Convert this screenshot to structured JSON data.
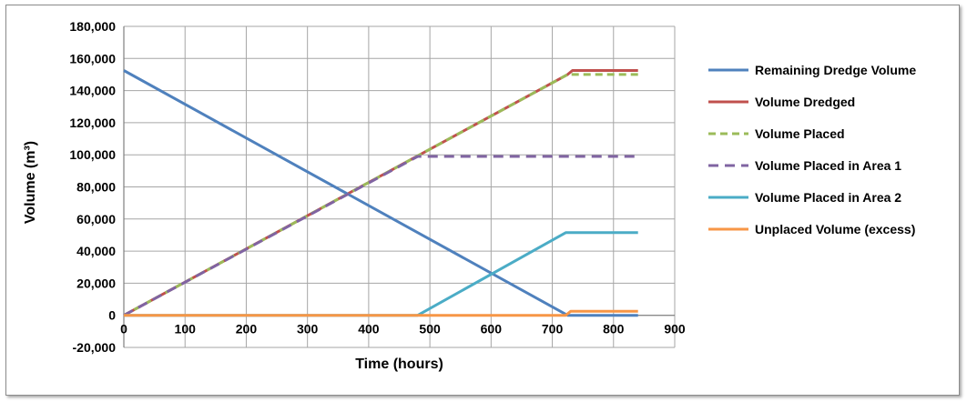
{
  "chart_data": {
    "type": "line",
    "title": "",
    "xlabel": "Time (hours)",
    "ylabel": "Volume (m³)",
    "xlim": [
      0,
      900
    ],
    "ylim": [
      -20000,
      180000
    ],
    "x_ticks": [
      0,
      100,
      200,
      300,
      400,
      500,
      600,
      700,
      800,
      900
    ],
    "x_tick_labels": [
      "0",
      "100",
      "200",
      "300",
      "400",
      "500",
      "600",
      "700",
      "800",
      "900"
    ],
    "y_ticks": [
      -20000,
      0,
      20000,
      40000,
      60000,
      80000,
      100000,
      120000,
      140000,
      160000,
      180000
    ],
    "y_tick_labels": [
      "-20,000",
      "0",
      "20,000",
      "40,000",
      "60,000",
      "80,000",
      "100,000",
      "120,000",
      "140,000",
      "160,000",
      "180,000"
    ],
    "grid": true,
    "legend_position": "right",
    "series": [
      {
        "name": "Remaining Dredge Volume",
        "color": "#4f81bd",
        "dash": "solid",
        "x": [
          0,
          725,
          840
        ],
        "y": [
          152500,
          0,
          0
        ]
      },
      {
        "name": "Volume Dredged",
        "color": "#c0504d",
        "dash": "solid",
        "x": [
          0,
          725,
          733,
          840
        ],
        "y": [
          0,
          150000,
          152500,
          152500
        ]
      },
      {
        "name": "Volume Placed",
        "color": "#9bbb59",
        "dash": "dashed",
        "x": [
          0,
          725,
          840
        ],
        "y": [
          0,
          150000,
          150000
        ]
      },
      {
        "name": "Volume Placed in Area 1",
        "color": "#8064a2",
        "dash": "dashed",
        "x": [
          0,
          480,
          840
        ],
        "y": [
          0,
          99000,
          99000
        ]
      },
      {
        "name": "Volume Placed in Area 2",
        "color": "#4bacc6",
        "dash": "solid",
        "x": [
          0,
          480,
          722,
          840
        ],
        "y": [
          0,
          0,
          51500,
          51500
        ]
      },
      {
        "name": "Unplaced Volume (excess)",
        "color": "#f79646",
        "dash": "solid",
        "x": [
          0,
          722,
          730,
          840
        ],
        "y": [
          0,
          0,
          2500,
          2500
        ]
      }
    ]
  }
}
